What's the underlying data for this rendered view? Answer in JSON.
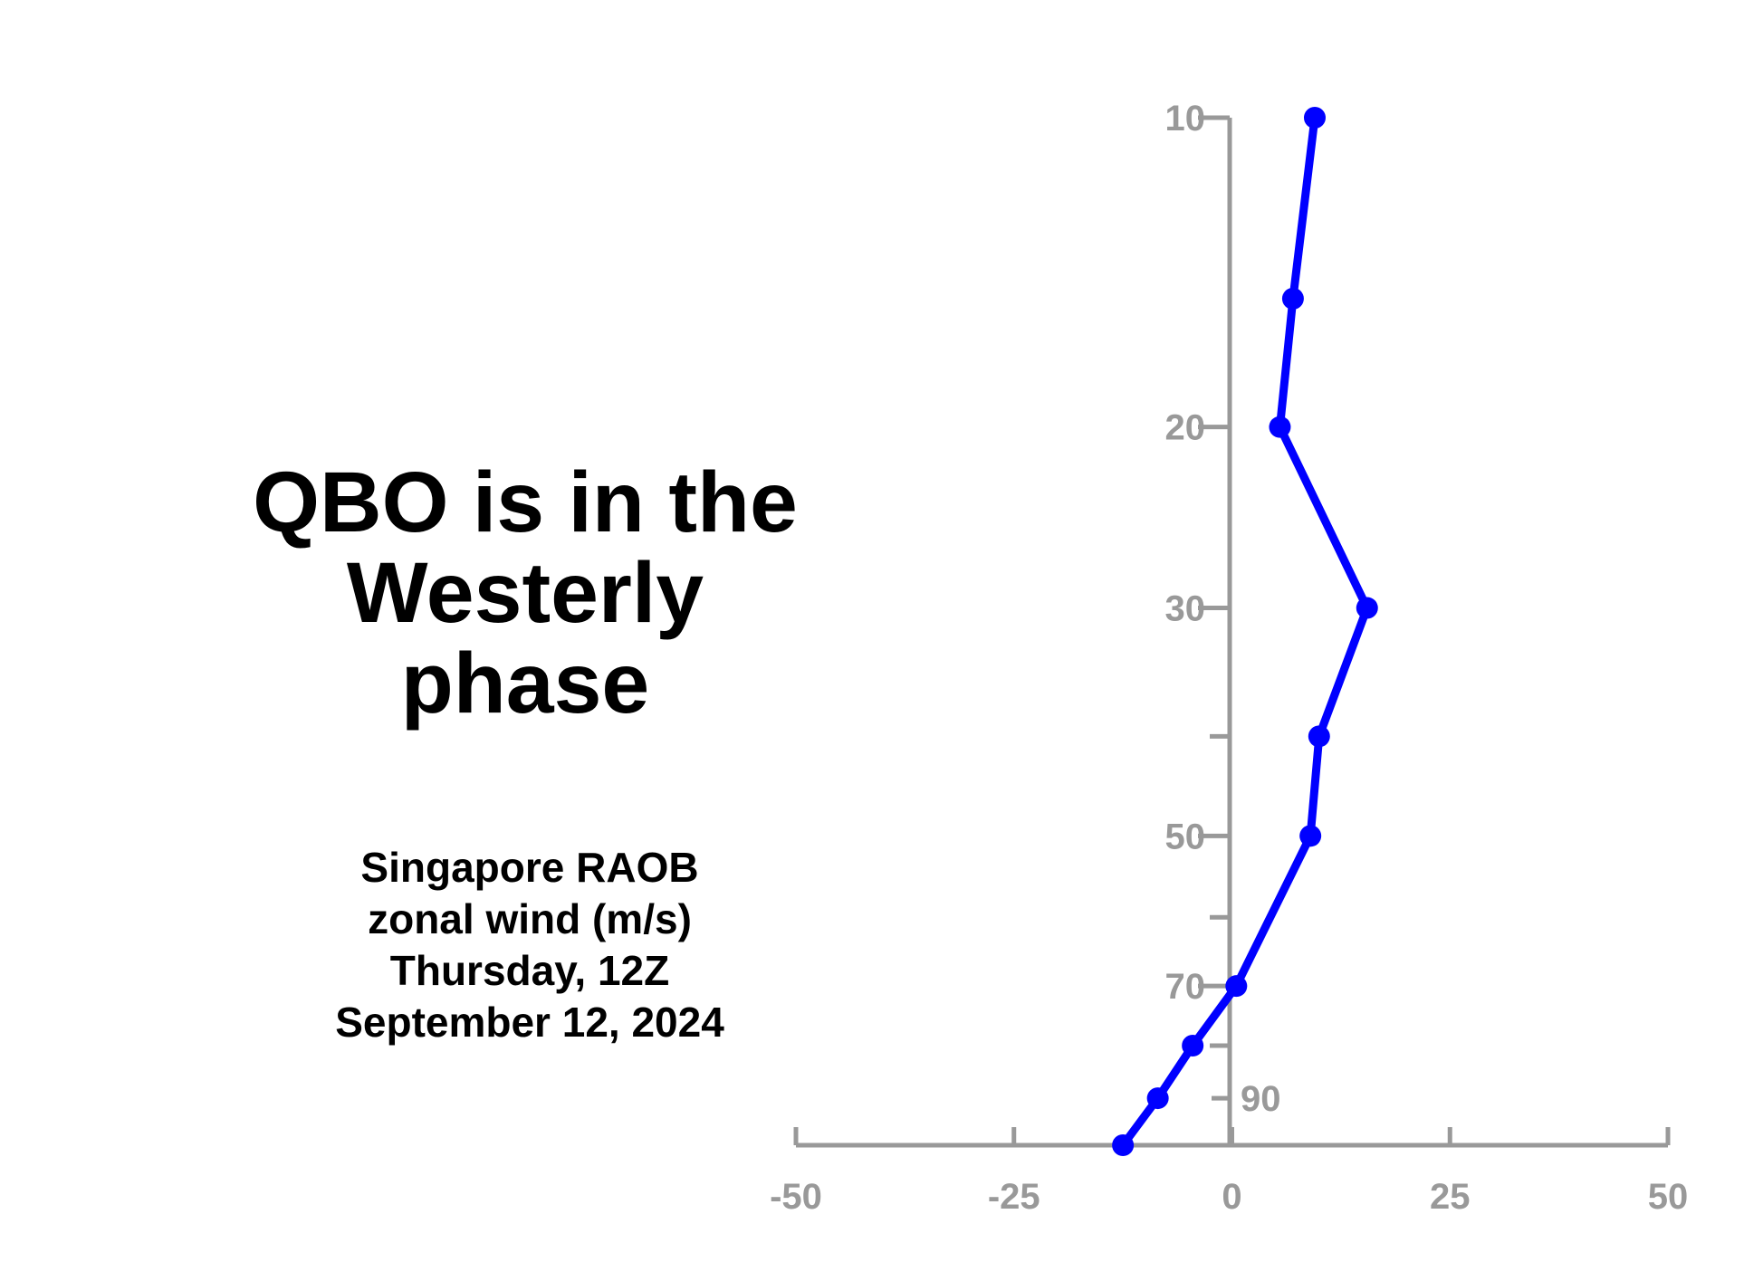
{
  "headline": [
    "QBO is in the",
    "Westerly",
    "phase"
  ],
  "subtitle": [
    "Singapore RAOB",
    "zonal wind (m/s)",
    "Thursday, 12Z",
    "September 12, 2024"
  ],
  "colors": {
    "axis": "#999999",
    "series": "#0000ff",
    "text": "#000000"
  },
  "chart_data": {
    "type": "line",
    "orientation": "vertical-profile",
    "x_axis": {
      "range": [
        -50,
        50
      ],
      "ticks": [
        -50,
        -25,
        0,
        25,
        50
      ]
    },
    "y_axis": {
      "scale": "log",
      "inverted": true,
      "range": [
        10,
        100
      ],
      "labeled_ticks": [
        10,
        20,
        30,
        50,
        70,
        90
      ],
      "minor_ticks": [
        40,
        60,
        80
      ]
    },
    "grid": false,
    "legend": "none",
    "series": [
      {
        "pressure": [
          10,
          15,
          20,
          30,
          40,
          50,
          70,
          80,
          90,
          100
        ],
        "wind": [
          9.5,
          7.0,
          5.5,
          15.5,
          10.0,
          9.0,
          0.5,
          -4.5,
          -8.5,
          -12.5
        ]
      }
    ]
  }
}
